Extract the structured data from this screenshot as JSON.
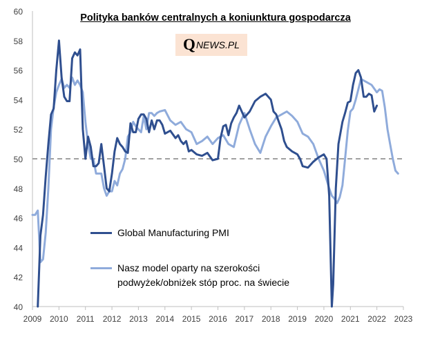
{
  "chart_data": {
    "type": "line",
    "title": "Polityka banków centralnych a koniunktura gospodarcza",
    "watermark": {
      "q": "Q",
      "rest": "NEWS.PL"
    },
    "xlabel": "",
    "ylabel": "",
    "xlim": [
      2009,
      2023
    ],
    "ylim": [
      40,
      60
    ],
    "x_ticks": [
      "2009",
      "2010",
      "2011",
      "2012",
      "2013",
      "2014",
      "2015",
      "2016",
      "2017",
      "2018",
      "2019",
      "2020",
      "2021",
      "2022",
      "2023"
    ],
    "y_ticks": [
      "40",
      "42",
      "44",
      "46",
      "48",
      "50",
      "52",
      "54",
      "56",
      "58",
      "60"
    ],
    "reference_line": {
      "y": 50,
      "style": "dashed",
      "color": "#a0a0a0"
    },
    "series": [
      {
        "name": "Global Manufacturing PMI",
        "color": "#2f4f8f",
        "x": [
          2009.2,
          2009.3,
          2009.4,
          2009.5,
          2009.6,
          2009.7,
          2009.8,
          2009.9,
          2010.0,
          2010.1,
          2010.2,
          2010.3,
          2010.4,
          2010.5,
          2010.6,
          2010.7,
          2010.8,
          2010.9,
          2011.0,
          2011.1,
          2011.2,
          2011.3,
          2011.4,
          2011.5,
          2011.6,
          2011.7,
          2011.8,
          2011.9,
          2012.0,
          2012.1,
          2012.2,
          2012.3,
          2012.4,
          2012.5,
          2012.6,
          2012.7,
          2012.8,
          2012.9,
          2013.0,
          2013.1,
          2013.2,
          2013.3,
          2013.4,
          2013.5,
          2013.6,
          2013.7,
          2013.8,
          2013.9,
          2014.0,
          2014.2,
          2014.4,
          2014.5,
          2014.6,
          2014.7,
          2014.8,
          2014.9,
          2015.0,
          2015.2,
          2015.4,
          2015.6,
          2015.8,
          2016.0,
          2016.1,
          2016.2,
          2016.3,
          2016.4,
          2016.5,
          2016.6,
          2016.7,
          2016.8,
          2017.0,
          2017.2,
          2017.4,
          2017.6,
          2017.8,
          2018.0,
          2018.1,
          2018.2,
          2018.3,
          2018.4,
          2018.5,
          2018.6,
          2018.8,
          2019.0,
          2019.1,
          2019.2,
          2019.4,
          2019.6,
          2019.8,
          2020.0,
          2020.1,
          2020.2,
          2020.3,
          2020.35,
          2020.45,
          2020.55,
          2020.7,
          2020.8,
          2020.9,
          2021.0,
          2021.1,
          2021.2,
          2021.3,
          2021.4,
          2021.5,
          2021.6,
          2021.7,
          2021.8,
          2021.9,
          2022.0
        ],
        "values": [
          40.0,
          44.8,
          46.2,
          48.8,
          51.0,
          53.0,
          53.4,
          56.0,
          58.0,
          55.5,
          54.2,
          53.9,
          53.9,
          56.8,
          57.2,
          57.0,
          57.4,
          52.0,
          50.0,
          51.5,
          50.8,
          49.5,
          49.5,
          49.7,
          51.0,
          49.5,
          48.0,
          47.8,
          49.0,
          50.5,
          51.4,
          51.0,
          50.8,
          50.5,
          50.4,
          52.4,
          51.8,
          51.8,
          52.7,
          53.0,
          53.0,
          52.7,
          51.8,
          52.6,
          52.0,
          52.6,
          52.6,
          52.3,
          51.7,
          51.9,
          51.4,
          51.6,
          51.2,
          51.0,
          51.2,
          50.5,
          50.6,
          50.3,
          50.2,
          50.4,
          49.9,
          50.0,
          51.4,
          52.2,
          52.3,
          51.6,
          52.4,
          52.8,
          53.1,
          53.6,
          52.8,
          53.2,
          53.9,
          54.2,
          54.4,
          54.0,
          53.2,
          53.0,
          52.5,
          52.0,
          51.2,
          50.8,
          50.5,
          50.3,
          50.0,
          49.5,
          49.4,
          49.8,
          50.1,
          50.3,
          50.0,
          47.5,
          40.0,
          41.5,
          48.0,
          51.0,
          52.5,
          53.1,
          53.8,
          53.9,
          55.0,
          55.8,
          56.0,
          55.5,
          54.2,
          54.2,
          54.4,
          54.3,
          53.2,
          53.6
        ]
      },
      {
        "name": "Nasz model oparty na szerokości podwyżek/obniżek stóp proc. na świecie",
        "name_lines": [
          "Nasz model oparty na szerokości",
          "podwyżek/obniżek stóp proc. na świecie"
        ],
        "color": "#8fabdb",
        "x": [
          2009.0,
          2009.1,
          2009.2,
          2009.3,
          2009.4,
          2009.5,
          2009.6,
          2009.7,
          2009.8,
          2009.9,
          2010.0,
          2010.1,
          2010.2,
          2010.3,
          2010.4,
          2010.5,
          2010.6,
          2010.7,
          2010.8,
          2010.9,
          2011.0,
          2011.1,
          2011.2,
          2011.3,
          2011.4,
          2011.5,
          2011.6,
          2011.7,
          2011.8,
          2011.9,
          2012.0,
          2012.1,
          2012.2,
          2012.3,
          2012.4,
          2012.5,
          2012.6,
          2012.7,
          2012.8,
          2012.9,
          2013.0,
          2013.1,
          2013.2,
          2013.3,
          2013.4,
          2013.5,
          2013.6,
          2013.7,
          2013.8,
          2014.0,
          2014.2,
          2014.4,
          2014.6,
          2014.8,
          2015.0,
          2015.2,
          2015.4,
          2015.6,
          2015.8,
          2016.0,
          2016.2,
          2016.4,
          2016.6,
          2016.8,
          2017.0,
          2017.2,
          2017.4,
          2017.6,
          2017.8,
          2018.0,
          2018.2,
          2018.4,
          2018.6,
          2018.8,
          2019.0,
          2019.2,
          2019.4,
          2019.6,
          2019.8,
          2020.0,
          2020.2,
          2020.3,
          2020.4,
          2020.5,
          2020.6,
          2020.7,
          2020.8,
          2020.9,
          2021.0,
          2021.1,
          2021.2,
          2021.4,
          2021.6,
          2021.8,
          2022.0,
          2022.1,
          2022.2,
          2022.3,
          2022.4,
          2022.5,
          2022.6,
          2022.7,
          2022.8
        ],
        "values": [
          46.2,
          46.2,
          46.5,
          43.0,
          43.2,
          45.0,
          48.0,
          52.0,
          53.5,
          54.5,
          55.0,
          55.4,
          54.8,
          55.0,
          54.8,
          55.5,
          55.0,
          55.3,
          55.0,
          54.5,
          52.5,
          51.0,
          50.0,
          50.0,
          49.0,
          49.0,
          49.0,
          48.0,
          47.5,
          47.8,
          47.8,
          48.5,
          48.2,
          49.0,
          49.3,
          50.0,
          51.5,
          51.8,
          52.5,
          52.2,
          52.0,
          51.8,
          52.9,
          52.0,
          53.1,
          53.1,
          52.9,
          53.1,
          53.2,
          53.3,
          52.6,
          52.3,
          52.5,
          52.0,
          51.8,
          51.0,
          51.2,
          51.5,
          51.0,
          51.4,
          51.6,
          51.0,
          50.8,
          52.3,
          53.1,
          52.0,
          51.0,
          50.4,
          51.5,
          52.2,
          52.8,
          53.0,
          53.2,
          52.9,
          52.5,
          51.7,
          51.5,
          51.0,
          50.0,
          49.2,
          48.0,
          47.5,
          47.3,
          47.0,
          47.4,
          48.2,
          50.0,
          51.9,
          53.2,
          53.4,
          54.0,
          55.4,
          55.2,
          55.0,
          54.5,
          54.7,
          54.6,
          53.5,
          52.0,
          51.0,
          50.0,
          49.2,
          49.0
        ]
      }
    ]
  }
}
